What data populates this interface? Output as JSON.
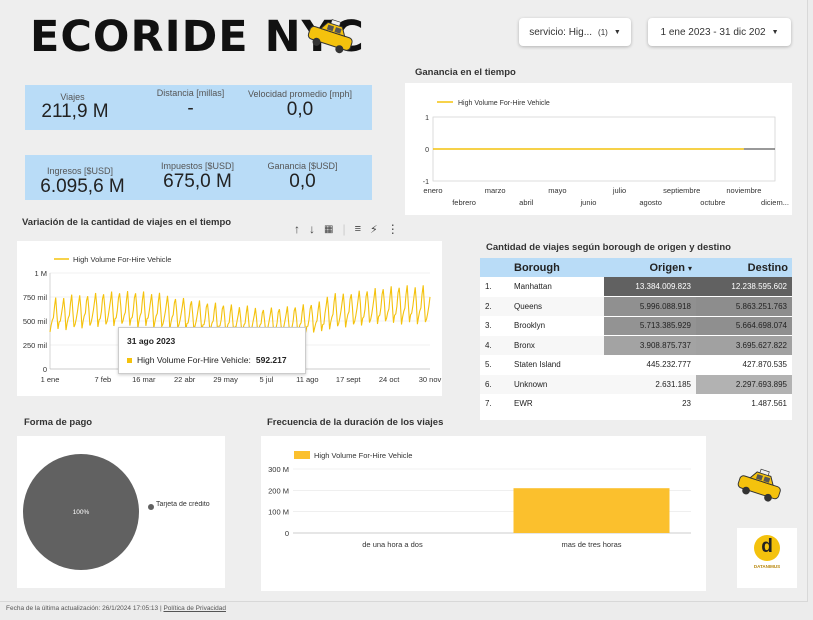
{
  "header": {
    "title": "ECORIDE NYC",
    "service_filter": {
      "label": "servicio: Hig...",
      "count": "(1)"
    },
    "date_range": "1 ene 2023 - 31 dic 202"
  },
  "kpis": {
    "viajes": {
      "label": "Viajes",
      "value": "211,9 M"
    },
    "distancia": {
      "label": "Distancia [millas]",
      "value": "-"
    },
    "velocidad": {
      "label": "Velocidad promedio [mph]",
      "value": "0,0"
    },
    "ingresos": {
      "label": "Ingresos [$USD]",
      "value": "6.095,6 M"
    },
    "impuestos": {
      "label": "Impuestos [$USD]",
      "value": "675,0 M"
    },
    "ganancia": {
      "label": "Ganancia [$USD]",
      "value": "0,0"
    }
  },
  "sections": {
    "ganancia_tiempo": "Ganancia en el tiempo",
    "variacion": "Variación de la cantidad de viajes en el tiempo",
    "borough": "Cantidad de viajes según borough de origen y destino",
    "forma_pago": "Forma de pago",
    "frecuencia": "Frecuencia de la duración de los viajes"
  },
  "colors": {
    "accent": "#f4c20d",
    "bar": "#fbc02d",
    "kpi_bg": "#b9dcf7",
    "pie": "#616161",
    "heat_dark": "#616161"
  },
  "icons": {
    "taxi": "taxi-icon",
    "logo": "datanimus-logo"
  },
  "chart_data": [
    {
      "id": "ganancia",
      "type": "line",
      "title": "Ganancia en el tiempo",
      "legend": "High Volume For-Hire Vehicle",
      "ylim": [
        -1,
        1
      ],
      "yticks": [
        "1",
        "0",
        "-1"
      ],
      "x_top": [
        "enero",
        "marzo",
        "mayo",
        "julio",
        "septiembre",
        "noviembre"
      ],
      "x_bottom": [
        "febrero",
        "abril",
        "junio",
        "agosto",
        "octubre",
        "diciem..."
      ],
      "values": [
        0,
        0,
        0,
        0,
        0,
        0,
        0,
        0,
        0,
        0,
        0,
        0
      ]
    },
    {
      "id": "variacion",
      "type": "line",
      "title": "Variación de la cantidad de viajes en el tiempo",
      "legend": "High Volume For-Hire Vehicle",
      "ylim": [
        0,
        1000000
      ],
      "yticks": [
        "1 M",
        "750 mil",
        "500 mil",
        "250 mil",
        "0"
      ],
      "xticks": [
        "1 ene",
        "7 feb",
        "16 mar",
        "22 abr",
        "29 may",
        "5 jul",
        "11 ago",
        "17 sept",
        "24 oct",
        "30 nov"
      ],
      "points": 334,
      "tooltip": {
        "date": "31 ago 2023",
        "series": "High Volume For-Hire Vehicle:",
        "value": "592.217"
      }
    },
    {
      "id": "borough",
      "type": "table",
      "columns": [
        "Borough",
        "Origen",
        "Destino"
      ],
      "sort_indicator": "▾",
      "rows": [
        {
          "idx": "1.",
          "borough": "Manhattan",
          "origen": "13.384.009.823",
          "destino": "12.238.595.602",
          "o": 13384009823,
          "d": 12238595602
        },
        {
          "idx": "2.",
          "borough": "Queens",
          "origen": "5.996.088.918",
          "destino": "5.863.251.763",
          "o": 5996088918,
          "d": 5863251763
        },
        {
          "idx": "3.",
          "borough": "Brooklyn",
          "origen": "5.713.385.929",
          "destino": "5.664.698.074",
          "o": 5713385929,
          "d": 5664698074
        },
        {
          "idx": "4.",
          "borough": "Bronx",
          "origen": "3.908.875.737",
          "destino": "3.695.627.822",
          "o": 3908875737,
          "d": 3695627822
        },
        {
          "idx": "5.",
          "borough": "Staten Island",
          "origen": "445.232.777",
          "destino": "427.870.535",
          "o": 445232777,
          "d": 427870535
        },
        {
          "idx": "6.",
          "borough": "Unknown",
          "origen": "2.631.185",
          "destino": "2.297.693.895",
          "o": 2631185,
          "d": 2297693895
        },
        {
          "idx": "7.",
          "borough": "EWR",
          "origen": "23",
          "destino": "1.487.561",
          "o": 23,
          "d": 1487561
        }
      ]
    },
    {
      "id": "pago",
      "type": "pie",
      "slices": [
        {
          "label": "Tarjeta de crédito",
          "value": 100,
          "text": "100%"
        }
      ]
    },
    {
      "id": "duracion",
      "type": "bar",
      "legend": "High Volume For-Hire Vehicle",
      "categories": [
        "de una hora a dos",
        "mas de tres horas"
      ],
      "values": [
        0,
        210000000
      ],
      "ylim": [
        0,
        300000000
      ],
      "yticks": [
        "300 M",
        "200 M",
        "100 M",
        "0"
      ]
    }
  ],
  "footer": {
    "updated": "Fecha de la última actualización: 26/1/2024 17:05:13",
    "sep": "|",
    "privacy": "Política de Privacidad"
  },
  "logo_text": "DATANIMUS"
}
